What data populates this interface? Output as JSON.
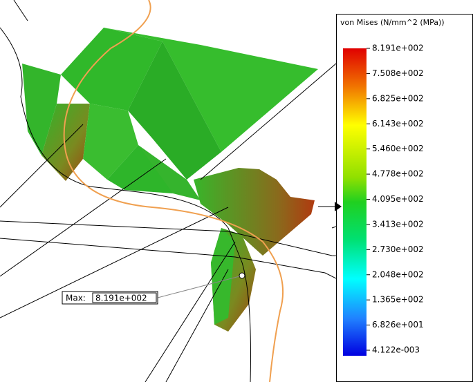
{
  "legend": {
    "title": "von Mises (N/mm^2 (MPa))",
    "labels": [
      "8.191e+002",
      "7.508e+002",
      "6.825e+002",
      "6.143e+002",
      "5.460e+002",
      "4.778e+002",
      "4.095e+002",
      "3.413e+002",
      "2.730e+002",
      "2.048e+002",
      "1.365e+002",
      "6.826e+001",
      "4.122e-003"
    ]
  },
  "probe": {
    "label": "Max:",
    "value": "8.191e+002"
  }
}
